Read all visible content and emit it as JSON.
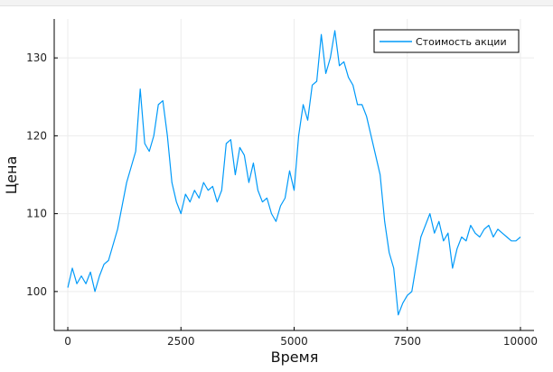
{
  "chart_data": {
    "type": "line",
    "xlabel": "Время",
    "ylabel": "Цена",
    "xlim": [
      -300,
      10300
    ],
    "ylim": [
      95,
      135
    ],
    "xticks": [
      0,
      2500,
      5000,
      7500,
      10000
    ],
    "xtick_labels": [
      "0",
      "2500",
      "5000",
      "7500",
      "10000"
    ],
    "yticks": [
      100,
      110,
      120,
      130
    ],
    "ytick_labels": [
      "100",
      "110",
      "120",
      "130"
    ],
    "grid": true,
    "legend_position": "top-right",
    "series": [
      {
        "name": "Стоимость акции",
        "color": "#009af9",
        "x": [
          0,
          100,
          200,
          300,
          400,
          500,
          600,
          700,
          800,
          900,
          1000,
          1100,
          1200,
          1300,
          1400,
          1500,
          1600,
          1700,
          1800,
          1900,
          2000,
          2100,
          2200,
          2300,
          2400,
          2500,
          2600,
          2700,
          2800,
          2900,
          3000,
          3100,
          3200,
          3300,
          3400,
          3500,
          3600,
          3700,
          3800,
          3900,
          4000,
          4100,
          4200,
          4300,
          4400,
          4500,
          4600,
          4700,
          4800,
          4900,
          5000,
          5100,
          5200,
          5300,
          5400,
          5500,
          5600,
          5700,
          5800,
          5900,
          6000,
          6100,
          6200,
          6300,
          6400,
          6500,
          6600,
          6700,
          6800,
          6900,
          7000,
          7100,
          7200,
          7300,
          7400,
          7500,
          7600,
          7700,
          7800,
          7900,
          8000,
          8100,
          8200,
          8300,
          8400,
          8500,
          8600,
          8700,
          8800,
          8900,
          9000,
          9100,
          9200,
          9300,
          9400,
          9500,
          9600,
          9700,
          9800,
          9900,
          10000
        ],
        "y": [
          100.5,
          103.0,
          101.0,
          102.0,
          101.0,
          102.5,
          100.0,
          102.0,
          103.5,
          104.0,
          106.0,
          108.0,
          111.0,
          114.0,
          116.0,
          118.0,
          126.0,
          119.0,
          118.0,
          120.0,
          124.0,
          124.5,
          120.0,
          114.0,
          111.5,
          110.0,
          112.5,
          111.5,
          113.0,
          112.0,
          114.0,
          113.0,
          113.5,
          111.5,
          113.0,
          119.0,
          119.5,
          115.0,
          118.5,
          117.5,
          114.0,
          116.5,
          113.0,
          111.5,
          112.0,
          110.0,
          109.0,
          111.0,
          112.0,
          115.5,
          113.0,
          120.0,
          124.0,
          122.0,
          126.5,
          127.0,
          133.0,
          128.0,
          130.0,
          133.5,
          129.0,
          129.5,
          127.5,
          126.5,
          124.0,
          124.0,
          122.5,
          120.0,
          117.5,
          115.0,
          109.0,
          105.0,
          103.0,
          97.0,
          98.5,
          99.5,
          100.0,
          103.5,
          107.0,
          108.5,
          110.0,
          107.5,
          109.0,
          106.5,
          107.5,
          103.0,
          105.5,
          107.0,
          106.5,
          108.5,
          107.5,
          107.0,
          108.0,
          108.5,
          107.0,
          108.0,
          107.5,
          107.0,
          106.5,
          106.5,
          107.0
        ]
      }
    ]
  }
}
